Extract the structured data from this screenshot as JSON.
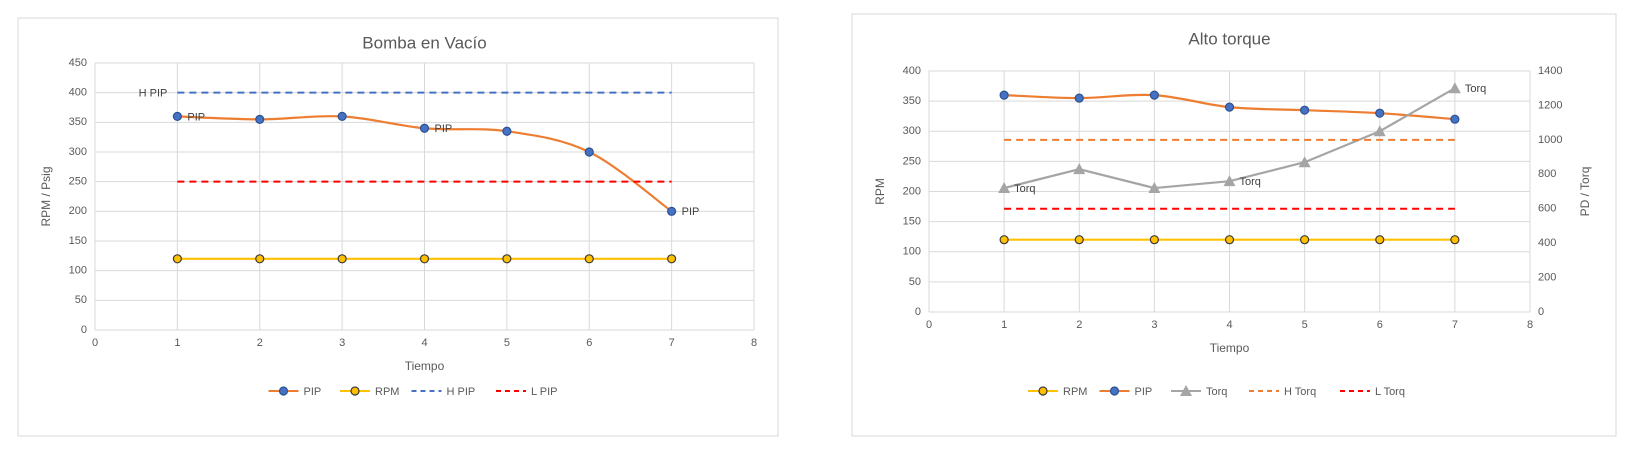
{
  "chart_data": [
    {
      "type": "line",
      "title": "Bomba en Vacío",
      "x_label": "Tiempo",
      "y_label": "RPM / Psig",
      "x": [
        1,
        2,
        3,
        4,
        5,
        6,
        7
      ],
      "xlim": [
        0,
        8
      ],
      "xticks": [
        0,
        1,
        2,
        3,
        4,
        5,
        6,
        7,
        8
      ],
      "ylim": [
        0,
        450
      ],
      "yticks": [
        0,
        50,
        100,
        150,
        200,
        250,
        300,
        350,
        400,
        450
      ],
      "grid": true,
      "series": [
        {
          "name": "PIP",
          "color": "#ed7d31",
          "marker": "circle",
          "marker_color": "#4472c4",
          "smooth": true,
          "values": [
            360,
            355,
            360,
            340,
            335,
            300,
            200
          ],
          "labels": [
            "PIP",
            null,
            null,
            "PIP",
            null,
            null,
            "PIP"
          ]
        },
        {
          "name": "RPM",
          "color": "#ffc000",
          "marker": "circle",
          "marker_color": "#ffc000",
          "values": [
            120,
            120,
            120,
            120,
            120,
            120,
            120
          ]
        },
        {
          "name": "H PIP",
          "color": "#4472c4",
          "dash": true,
          "values": [
            400,
            400,
            400,
            400,
            400,
            400,
            400
          ],
          "labels": [
            "H PIP",
            null,
            null,
            null,
            null,
            null,
            null
          ],
          "label_side": "left"
        },
        {
          "name": "L PIP",
          "color": "#ff0000",
          "dash": true,
          "values": [
            250,
            250,
            250,
            250,
            250,
            250,
            250
          ]
        }
      ]
    },
    {
      "type": "line",
      "title": "Alto torque",
      "x_label": "Tiempo",
      "y_label": "RPM",
      "y2_label": "PD / Torq",
      "x": [
        1,
        2,
        3,
        4,
        5,
        6,
        7
      ],
      "xlim": [
        0,
        8
      ],
      "xticks": [
        0,
        1,
        2,
        3,
        4,
        5,
        6,
        7,
        8
      ],
      "ylim": [
        0,
        400
      ],
      "yticks": [
        0,
        50,
        100,
        150,
        200,
        250,
        300,
        350,
        400
      ],
      "y2lim": [
        0,
        1400
      ],
      "y2ticks": [
        0,
        200,
        400,
        600,
        800,
        1000,
        1200,
        1400
      ],
      "grid": true,
      "series": [
        {
          "name": "RPM",
          "color": "#ffc000",
          "marker": "circle",
          "marker_color": "#ffc000",
          "values": [
            120,
            120,
            120,
            120,
            120,
            120,
            120
          ]
        },
        {
          "name": "PIP",
          "color": "#ed7d31",
          "marker": "circle",
          "marker_color": "#4472c4",
          "smooth": true,
          "values": [
            360,
            355,
            360,
            340,
            335,
            330,
            320
          ]
        },
        {
          "name": "Torq",
          "color": "#a5a5a5",
          "marker": "triangle",
          "marker_color": "#a5a5a5",
          "axis": "y2",
          "values": [
            720,
            830,
            720,
            760,
            870,
            1050,
            1300
          ],
          "labels": [
            "Torq",
            null,
            null,
            "Torq",
            null,
            null,
            "Torq"
          ]
        },
        {
          "name": "H Torq",
          "color": "#ed7d31",
          "dash": true,
          "axis": "y2",
          "values": [
            1000,
            1000,
            1000,
            1000,
            1000,
            1000,
            1000
          ]
        },
        {
          "name": "L Torq",
          "color": "#ff0000",
          "dash": true,
          "axis": "y2",
          "values": [
            600,
            600,
            600,
            600,
            600,
            600,
            600
          ]
        }
      ]
    }
  ]
}
